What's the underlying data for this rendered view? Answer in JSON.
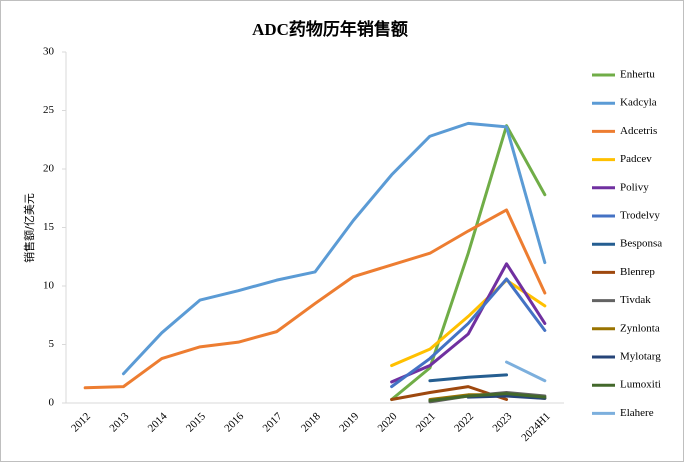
{
  "chart_data": {
    "type": "line",
    "title": "ADC药物历年销售额",
    "y_label": "销售额/亿美元",
    "categories": [
      "2012",
      "2013",
      "2014",
      "2015",
      "2016",
      "2017",
      "2018",
      "2019",
      "2020",
      "2021",
      "2022",
      "2023",
      "2024H1"
    ],
    "ylim": [
      0,
      30
    ],
    "yticks": [
      0,
      5,
      10,
      15,
      20,
      25,
      30
    ],
    "series": [
      {
        "name": "Enhertu",
        "color": "#70ad47",
        "values": [
          null,
          null,
          null,
          null,
          null,
          null,
          null,
          null,
          0.3,
          3.0,
          12.8,
          23.7,
          17.8
        ]
      },
      {
        "name": "Kadcyla",
        "color": "#5b9bd5",
        "values": [
          null,
          2.5,
          6.0,
          8.8,
          9.6,
          10.5,
          11.2,
          15.6,
          19.5,
          22.8,
          23.9,
          23.6,
          12.0
        ]
      },
      {
        "name": "Adcetris",
        "color": "#ed7d31",
        "values": [
          1.3,
          1.4,
          3.8,
          4.8,
          5.2,
          6.1,
          8.5,
          10.8,
          11.8,
          12.8,
          14.7,
          16.5,
          9.4
        ]
      },
      {
        "name": "Padcev",
        "color": "#ffc000",
        "values": [
          null,
          null,
          null,
          null,
          null,
          null,
          null,
          null,
          3.2,
          4.6,
          7.4,
          10.5,
          8.3
        ]
      },
      {
        "name": "Polivy",
        "color": "#7030a0",
        "values": [
          null,
          null,
          null,
          null,
          null,
          null,
          null,
          null,
          1.8,
          3.2,
          5.9,
          11.9,
          6.8
        ]
      },
      {
        "name": "Trodelvy",
        "color": "#4472c4",
        "values": [
          null,
          null,
          null,
          null,
          null,
          null,
          null,
          null,
          1.4,
          3.8,
          6.8,
          10.6,
          6.2
        ]
      },
      {
        "name": "Besponsa",
        "color": "#255e91",
        "values": [
          null,
          null,
          null,
          null,
          null,
          null,
          null,
          null,
          null,
          1.9,
          2.2,
          2.4,
          null
        ]
      },
      {
        "name": "Blenrep",
        "color": "#9e480e",
        "values": [
          null,
          null,
          null,
          null,
          null,
          null,
          null,
          null,
          0.3,
          0.9,
          1.4,
          0.3,
          null
        ]
      },
      {
        "name": "Tivdak",
        "color": "#636363",
        "values": [
          null,
          null,
          null,
          null,
          null,
          null,
          null,
          null,
          null,
          0.1,
          0.6,
          0.9,
          0.6
        ]
      },
      {
        "name": "Zynlonta",
        "color": "#997300",
        "values": [
          null,
          null,
          null,
          null,
          null,
          null,
          null,
          null,
          null,
          0.3,
          0.7,
          0.7,
          0.4
        ]
      },
      {
        "name": "Mylotarg",
        "color": "#264478",
        "values": [
          null,
          null,
          null,
          null,
          null,
          null,
          null,
          null,
          null,
          null,
          0.5,
          0.6,
          0.4
        ]
      },
      {
        "name": "Lumoxiti",
        "color": "#43682b",
        "values": [
          null,
          null,
          null,
          null,
          null,
          null,
          null,
          null,
          null,
          0.2,
          0.6,
          0.8,
          0.5
        ]
      },
      {
        "name": "Elahere",
        "color": "#7cafdd",
        "values": [
          null,
          null,
          null,
          null,
          null,
          null,
          null,
          null,
          null,
          null,
          null,
          3.5,
          1.9
        ]
      }
    ]
  }
}
